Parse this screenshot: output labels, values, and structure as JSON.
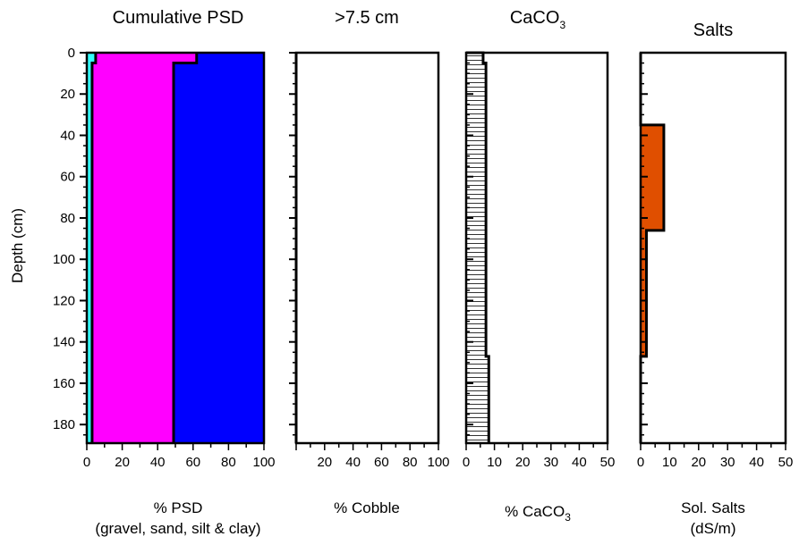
{
  "chart_data": [
    {
      "type": "area",
      "title": "Cumulative PSD",
      "xlabel": "% PSD",
      "xlabel_sub": "(gravel, sand, silt & clay)",
      "ylabel": "Depth (cm)",
      "xlim": [
        0,
        100
      ],
      "ylim": [
        0,
        189
      ],
      "x_ticks": [
        "0",
        "20",
        "40",
        "60",
        "80",
        "100"
      ],
      "y_ticks": [
        "0",
        "20",
        "40",
        "60",
        "80",
        "100",
        "120",
        "140",
        "160",
        "180"
      ],
      "depth_breaks": [
        0,
        5,
        189
      ],
      "series": [
        {
          "name": "gravel",
          "color": "#33ffff",
          "values": [
            5,
            3
          ]
        },
        {
          "name": "sand",
          "color": "#ff00ff",
          "values": [
            62,
            49
          ]
        },
        {
          "name": "silt & clay",
          "color": "#0000ff",
          "values": [
            100,
            100
          ]
        }
      ]
    },
    {
      "type": "bar",
      "title": ">7.5 cm",
      "xlabel": "% Cobble",
      "xlim": [
        0,
        100
      ],
      "ylim": [
        0,
        189
      ],
      "x_ticks": [
        "20",
        "40",
        "60",
        "80",
        "100"
      ],
      "layers": [
        {
          "top": 0,
          "bottom": 189,
          "value": 0
        }
      ]
    },
    {
      "type": "bar",
      "title": "CaCO",
      "title_sub": "3",
      "xlabel": "% CaCO",
      "xlabel_sub": "3",
      "xlim": [
        0,
        50
      ],
      "ylim": [
        0,
        189
      ],
      "x_ticks": [
        "0",
        "10",
        "20",
        "30",
        "40",
        "50"
      ],
      "fill_pattern": "horizontal-lines",
      "layers": [
        {
          "top": 0,
          "bottom": 5,
          "value": 6
        },
        {
          "top": 5,
          "bottom": 147,
          "value": 7
        },
        {
          "top": 147,
          "bottom": 189,
          "value": 8
        }
      ]
    },
    {
      "type": "bar",
      "title": "Salts",
      "xlabel": "Sol. Salts",
      "xlabel_sub": "(dS/m)",
      "xlim": [
        0,
        50
      ],
      "ylim": [
        0,
        189
      ],
      "x_ticks": [
        "0",
        "10",
        "20",
        "30",
        "40",
        "50"
      ],
      "fill_color": "#e04f00",
      "layers": [
        {
          "top": 0,
          "bottom": 35,
          "value": 0
        },
        {
          "top": 35,
          "bottom": 86,
          "value": 8
        },
        {
          "top": 86,
          "bottom": 147,
          "value": 2
        },
        {
          "top": 147,
          "bottom": 189,
          "value": 0
        }
      ]
    }
  ]
}
